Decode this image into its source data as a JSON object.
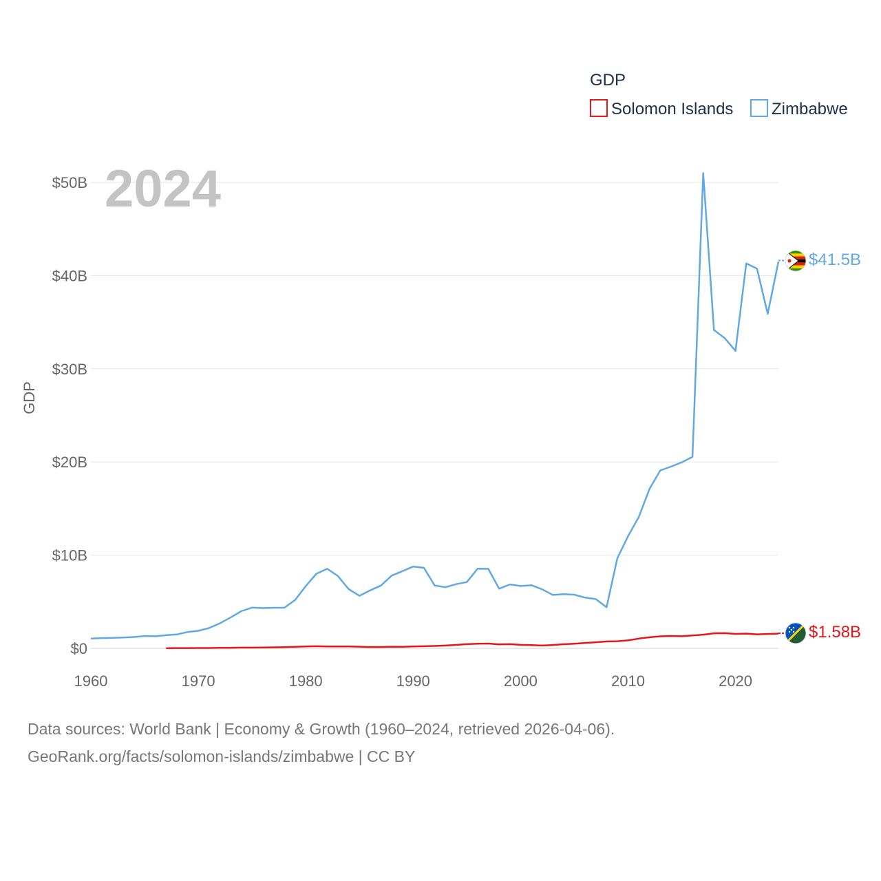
{
  "chart_data": {
    "type": "line",
    "legend_title": "GDP",
    "year_label": "2024",
    "ylabel": "GDP",
    "ylim": [
      0,
      50
    ],
    "yticks": [
      0,
      10,
      20,
      30,
      40,
      50
    ],
    "ytick_labels": [
      "$0",
      "$10B",
      "$20B",
      "$30B",
      "$40B",
      "$50B"
    ],
    "xlim": [
      1960,
      2024
    ],
    "xticks": [
      1960,
      1970,
      1980,
      1990,
      2000,
      2010,
      2020
    ],
    "xtick_labels": [
      "1960",
      "1970",
      "1980",
      "1990",
      "2000",
      "2010",
      "2020"
    ],
    "unit": "billion USD",
    "series": [
      {
        "name": "Solomon Islands",
        "color": "#e8161b",
        "end_label": "$1.58B",
        "points": [
          [
            1967,
            0.02
          ],
          [
            1968,
            0.03
          ],
          [
            1969,
            0.03
          ],
          [
            1970,
            0.04
          ],
          [
            1971,
            0.04
          ],
          [
            1972,
            0.05
          ],
          [
            1973,
            0.06
          ],
          [
            1974,
            0.08
          ],
          [
            1975,
            0.08
          ],
          [
            1976,
            0.09
          ],
          [
            1977,
            0.11
          ],
          [
            1978,
            0.13
          ],
          [
            1979,
            0.17
          ],
          [
            1980,
            0.2
          ],
          [
            1981,
            0.23
          ],
          [
            1982,
            0.21
          ],
          [
            1983,
            0.2
          ],
          [
            1984,
            0.21
          ],
          [
            1985,
            0.18
          ],
          [
            1986,
            0.14
          ],
          [
            1987,
            0.15
          ],
          [
            1988,
            0.18
          ],
          [
            1989,
            0.17
          ],
          [
            1990,
            0.21
          ],
          [
            1991,
            0.23
          ],
          [
            1992,
            0.26
          ],
          [
            1993,
            0.3
          ],
          [
            1994,
            0.37
          ],
          [
            1995,
            0.45
          ],
          [
            1996,
            0.5
          ],
          [
            1997,
            0.52
          ],
          [
            1998,
            0.43
          ],
          [
            1999,
            0.45
          ],
          [
            2000,
            0.38
          ],
          [
            2001,
            0.35
          ],
          [
            2002,
            0.3
          ],
          [
            2003,
            0.36
          ],
          [
            2004,
            0.44
          ],
          [
            2005,
            0.5
          ],
          [
            2006,
            0.58
          ],
          [
            2007,
            0.66
          ],
          [
            2008,
            0.74
          ],
          [
            2009,
            0.77
          ],
          [
            2010,
            0.86
          ],
          [
            2011,
            1.05
          ],
          [
            2012,
            1.19
          ],
          [
            2013,
            1.29
          ],
          [
            2014,
            1.33
          ],
          [
            2015,
            1.3
          ],
          [
            2016,
            1.38
          ],
          [
            2017,
            1.47
          ],
          [
            2018,
            1.62
          ],
          [
            2019,
            1.63
          ],
          [
            2020,
            1.55
          ],
          [
            2021,
            1.58
          ],
          [
            2022,
            1.51
          ],
          [
            2023,
            1.54
          ],
          [
            2024,
            1.58
          ]
        ]
      },
      {
        "name": "Zimbabwe",
        "color": "#62a8e5",
        "end_label": "$41.5B",
        "points": [
          [
            1960,
            1.05
          ],
          [
            1961,
            1.1
          ],
          [
            1962,
            1.12
          ],
          [
            1963,
            1.16
          ],
          [
            1964,
            1.22
          ],
          [
            1965,
            1.32
          ],
          [
            1966,
            1.3
          ],
          [
            1967,
            1.41
          ],
          [
            1968,
            1.49
          ],
          [
            1969,
            1.75
          ],
          [
            1970,
            1.88
          ],
          [
            1971,
            2.18
          ],
          [
            1972,
            2.68
          ],
          [
            1973,
            3.31
          ],
          [
            1974,
            3.99
          ],
          [
            1975,
            4.37
          ],
          [
            1976,
            4.32
          ],
          [
            1977,
            4.36
          ],
          [
            1978,
            4.36
          ],
          [
            1979,
            5.18
          ],
          [
            1980,
            6.68
          ],
          [
            1981,
            8.01
          ],
          [
            1982,
            8.54
          ],
          [
            1983,
            7.76
          ],
          [
            1984,
            6.35
          ],
          [
            1985,
            5.64
          ],
          [
            1986,
            6.22
          ],
          [
            1987,
            6.74
          ],
          [
            1988,
            7.81
          ],
          [
            1989,
            8.29
          ],
          [
            1990,
            8.78
          ],
          [
            1991,
            8.64
          ],
          [
            1992,
            6.75
          ],
          [
            1993,
            6.56
          ],
          [
            1994,
            6.89
          ],
          [
            1995,
            7.11
          ],
          [
            1996,
            8.55
          ],
          [
            1997,
            8.53
          ],
          [
            1998,
            6.4
          ],
          [
            1999,
            6.86
          ],
          [
            2000,
            6.69
          ],
          [
            2001,
            6.78
          ],
          [
            2002,
            6.34
          ],
          [
            2003,
            5.73
          ],
          [
            2004,
            5.81
          ],
          [
            2005,
            5.76
          ],
          [
            2006,
            5.44
          ],
          [
            2007,
            5.29
          ],
          [
            2008,
            4.42
          ],
          [
            2009,
            9.67
          ],
          [
            2010,
            12.04
          ],
          [
            2011,
            14.1
          ],
          [
            2012,
            17.11
          ],
          [
            2013,
            19.09
          ],
          [
            2014,
            19.5
          ],
          [
            2015,
            19.96
          ],
          [
            2016,
            20.55
          ],
          [
            2017,
            51.0
          ],
          [
            2018,
            34.16
          ],
          [
            2019,
            33.29
          ],
          [
            2020,
            31.92
          ],
          [
            2021,
            41.3
          ],
          [
            2022,
            40.75
          ],
          [
            2023,
            35.9
          ],
          [
            2024,
            41.5
          ]
        ]
      }
    ]
  },
  "footer": {
    "line1": "Data sources: World Bank | Economy & Growth (1960–2024, retrieved 2026-04-06).",
    "line2": "GeoRank.org/facts/solomon-islands/zimbabwe | CC BY"
  }
}
